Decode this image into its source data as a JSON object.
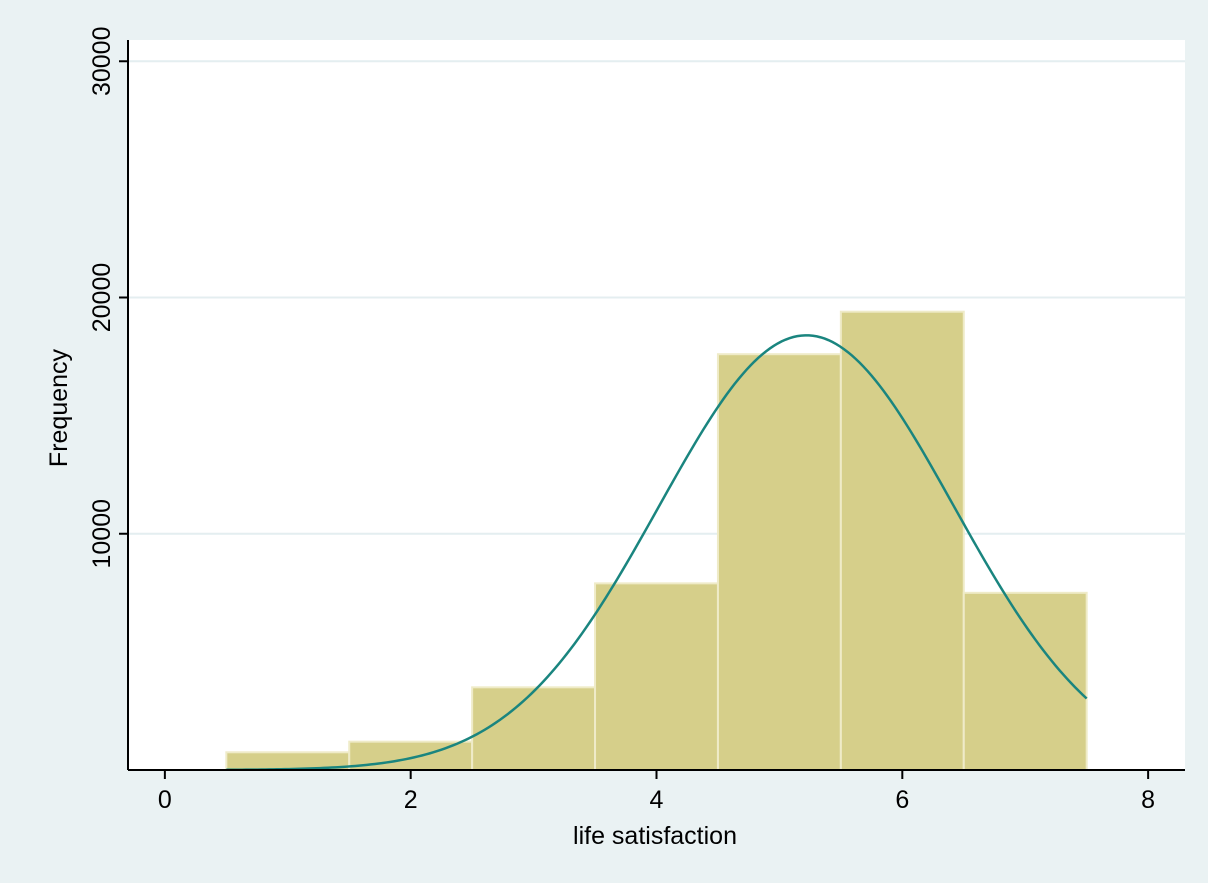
{
  "chart_data": {
    "type": "bar",
    "subtype": "histogram",
    "xlabel": "life satisfaction",
    "ylabel": "Frequency",
    "title": "",
    "xlim": [
      -0.3,
      8.3
    ],
    "ylim": [
      0,
      30900
    ],
    "x_ticks": [
      0,
      2,
      4,
      6,
      8
    ],
    "y_ticks": [
      10000,
      20000,
      30000
    ],
    "x_tick_labels": [
      "0",
      "2",
      "4",
      "6",
      "8"
    ],
    "y_tick_labels": [
      "10000",
      "20000",
      "30000"
    ],
    "grid": "horizontal",
    "bins": [
      {
        "x_start": 0.5,
        "x_end": 1.5,
        "value": 750
      },
      {
        "x_start": 1.5,
        "x_end": 2.5,
        "value": 1200
      },
      {
        "x_start": 2.5,
        "x_end": 3.5,
        "value": 3500
      },
      {
        "x_start": 3.5,
        "x_end": 4.5,
        "value": 7900
      },
      {
        "x_start": 4.5,
        "x_end": 5.5,
        "value": 17600
      },
      {
        "x_start": 5.5,
        "x_end": 6.5,
        "value": 19400
      },
      {
        "x_start": 6.5,
        "x_end": 7.5,
        "value": 7500
      }
    ],
    "overlay": {
      "type": "normal-density-curve",
      "mean": 5.22,
      "sd": 1.2,
      "peak": 18400,
      "x_range": [
        0.5,
        7.5
      ]
    },
    "colors": {
      "background": "#eaf2f3",
      "plot_background": "#ffffff",
      "bar_fill": "#d6cf8a",
      "bar_edge": "#efebc8",
      "curve": "#1a857f",
      "grid": "#e4eef0",
      "axis": "#000000"
    }
  }
}
